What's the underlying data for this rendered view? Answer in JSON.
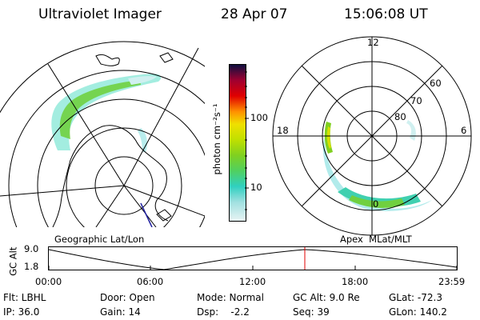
{
  "header": {
    "title": "Ultraviolet Imager",
    "date": "28 Apr 07",
    "time": "15:06:08 UT"
  },
  "geo_panel": {
    "label": "Geographic Lat/Lon"
  },
  "colorbar": {
    "unit": "photon cm⁻²s⁻¹",
    "ticks": [
      "100",
      "10"
    ],
    "scale": "log",
    "colors": [
      "#e8f4f4",
      "#a0e0e0",
      "#30d0c0",
      "#60d020",
      "#b0e000",
      "#f0e000",
      "#ff8000",
      "#e00000",
      "#900030",
      "#101040"
    ]
  },
  "mag_panel": {
    "label": "Apex  MLat/MLT",
    "mlt_labels": [
      "12",
      "18",
      "6",
      "0"
    ],
    "lat_labels": [
      "60",
      "70",
      "80"
    ]
  },
  "strip": {
    "ylabel": "GC Alt",
    "ytick_top": "9.0",
    "ytick_bottom": "1.8",
    "xticks": [
      "00:00",
      "06:00",
      "12:00",
      "18:00",
      "23:59"
    ],
    "marker_color": "#e00000"
  },
  "info": {
    "row1": {
      "flt": "Flt: LBHL",
      "door": "Door: Open",
      "mode": "Mode: Normal",
      "gcalt": "GC Alt: 9.0 Re",
      "glat": "GLat: -72.3"
    },
    "row2": {
      "ip": "IP: 36.0",
      "gain": "Gain: 14",
      "dsp": "Dsp:    -2.2",
      "seq": "Seq: 39",
      "glon": "GLon: 140.2"
    }
  }
}
